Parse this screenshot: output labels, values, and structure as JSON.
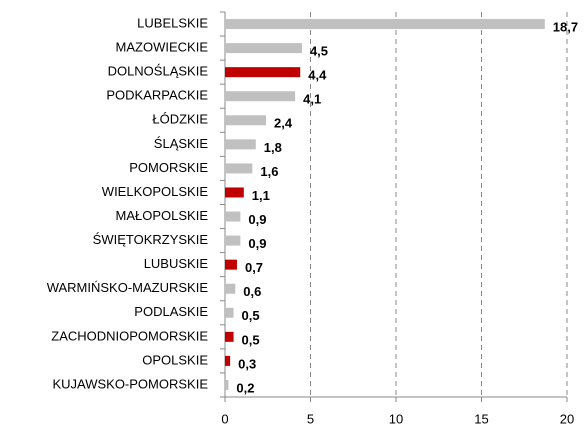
{
  "chart_data": {
    "type": "hbar",
    "categories": [
      "LUBELSKIE",
      "MAZOWIECKIE",
      "DOLNOŚLĄSKIE",
      "PODKARPACKIE",
      "ŁÓDZKIE",
      "ŚLĄSKIE",
      "POMORSKIE",
      "WIELKOPOLSKIE",
      "MAŁOPOLSKIE",
      "ŚWIĘTOKRZYSKIE",
      "LUBUSKIE",
      "WARMIŃSKO-MAZURSKIE",
      "PODLASKIE",
      "ZACHODNIOPOMORSKIE",
      "OPOLSKIE",
      "KUJAWSKO-POMORSKIE"
    ],
    "values": [
      18.7,
      4.5,
      4.4,
      4.1,
      2.4,
      1.8,
      1.6,
      1.1,
      0.9,
      0.9,
      0.7,
      0.6,
      0.5,
      0.5,
      0.3,
      0.2
    ],
    "value_labels": [
      "18,7",
      "4,5",
      "4,4",
      "4,1",
      "2,4",
      "1,8",
      "1,6",
      "1,1",
      "0,9",
      "0,9",
      "0,7",
      "0,6",
      "0,5",
      "0,5",
      "0,3",
      "0,2"
    ],
    "colors": [
      "#c0c0c0",
      "#c0c0c0",
      "#c00000",
      "#c0c0c0",
      "#c0c0c0",
      "#c0c0c0",
      "#c0c0c0",
      "#c00000",
      "#c0c0c0",
      "#c0c0c0",
      "#c00000",
      "#c0c0c0",
      "#c0c0c0",
      "#c00000",
      "#c00000",
      "#c0c0c0"
    ],
    "xlim": [
      0,
      20
    ],
    "xticks": [
      0,
      5,
      10,
      15,
      20
    ],
    "grid": true
  }
}
